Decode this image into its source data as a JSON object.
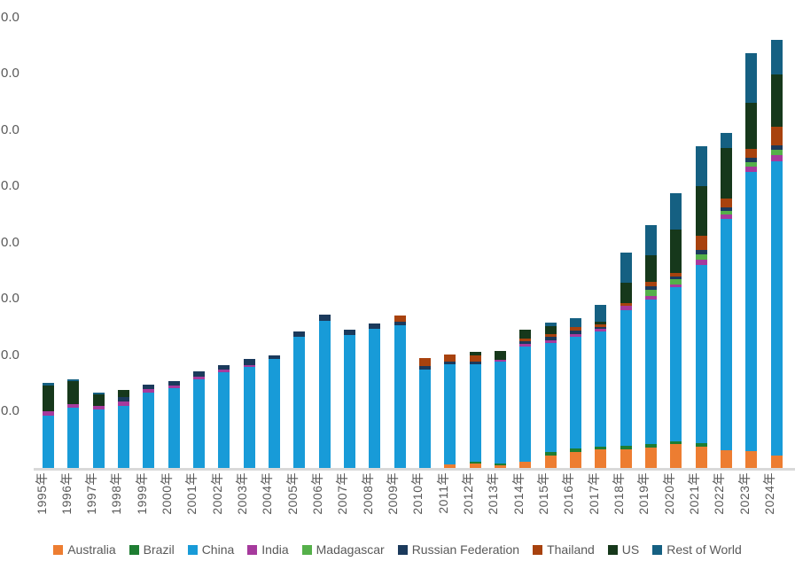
{
  "page": {
    "background": "#FFFFFF"
  },
  "axis": {
    "label_color": "#595959",
    "axis_line_color": "#D9D9D9",
    "y_tick_labels_visible": [
      "0.0",
      "0.0",
      "0.0",
      "0.0",
      "0.0",
      "0.0",
      "0.0",
      "0.0"
    ],
    "y_zero_label": "-",
    "note": "y-axis numeric labels are cropped at the left image edge; only the trailing 0.0 of each label is visible"
  },
  "chart_data": {
    "type": "bar",
    "stacked": true,
    "title": "",
    "xlabel": "",
    "ylabel": "",
    "grid": false,
    "legend_position": "bottom",
    "x_label_rotation_deg": 90,
    "ylim": [
      0,
      400
    ],
    "y_tick_interval": 50,
    "categories": [
      "1995年",
      "1996年",
      "1997年",
      "1998年",
      "1999年",
      "2000年",
      "2001年",
      "2002年",
      "2003年",
      "2004年",
      "2005年",
      "2006年",
      "2007年",
      "2008年",
      "2009年",
      "2010年",
      "2011年",
      "2012年",
      "2013年",
      "2014年",
      "2015年",
      "2016年",
      "2017年",
      "2018年",
      "2019年",
      "2020年",
      "2021年",
      "2022年",
      "2023年",
      "2024年"
    ],
    "series": [
      {
        "name": "Australia",
        "color": "#ED7D31",
        "values": [
          0,
          0,
          0,
          0,
          0,
          0,
          0,
          0,
          0,
          0,
          0,
          0,
          0,
          0,
          0,
          0,
          2.4,
          3.9,
          1.6,
          5.5,
          11.0,
          13.4,
          16.5,
          16.5,
          18.1,
          20.5,
          18.9,
          15.0,
          14.2,
          11.0
        ]
      },
      {
        "name": "Brazil",
        "color": "#1E7D32",
        "values": [
          0,
          0,
          0,
          0,
          0,
          0,
          0,
          0,
          0,
          0,
          0,
          0,
          0,
          0,
          0,
          0,
          0,
          1.6,
          1.6,
          0,
          2.4,
          3.9,
          2.4,
          3.1,
          2.4,
          2.4,
          2.4,
          0,
          0,
          0
        ]
      },
      {
        "name": "China",
        "color": "#189BD8",
        "values": [
          45.7,
          53.5,
          51.2,
          55.1,
          66.9,
          70.1,
          78.0,
          85.0,
          89.0,
          96.1,
          116.5,
          130.7,
          118.1,
          123.6,
          126.0,
          87.4,
          89.0,
          86.6,
          90.6,
          101.6,
          97.6,
          99.2,
          101.6,
          120.5,
          129.1,
          137.0,
          158.3,
          205.5,
          248.8,
          261.4
        ]
      },
      {
        "name": "India",
        "color": "#A63A9D",
        "values": [
          4.7,
          3.1,
          3.9,
          3.9,
          3.1,
          3.1,
          3.1,
          2.4,
          1.6,
          0,
          0,
          0,
          0,
          0,
          0,
          0,
          0,
          0,
          1.6,
          2.4,
          2.4,
          2.4,
          2.4,
          3.9,
          3.1,
          2.4,
          4.7,
          4.7,
          4.7,
          5.5
        ]
      },
      {
        "name": "Madagascar",
        "color": "#55B04A",
        "values": [
          0,
          0,
          0,
          0,
          0,
          0,
          0,
          0,
          0,
          0,
          0,
          0,
          0,
          0,
          0,
          0,
          0,
          0,
          0,
          0,
          0,
          0,
          0,
          0,
          5.5,
          4.7,
          4.7,
          3.1,
          3.9,
          4.7
        ]
      },
      {
        "name": "Russian Federation",
        "color": "#1B3A5C",
        "values": [
          0,
          0,
          0,
          3.9,
          3.9,
          3.9,
          4.7,
          3.9,
          5.5,
          3.9,
          4.7,
          5.5,
          4.7,
          4.7,
          3.9,
          3.1,
          2.4,
          2.4,
          0,
          2.4,
          3.1,
          3.1,
          1.6,
          0,
          3.1,
          3.1,
          4.7,
          3.1,
          3.9,
          3.9
        ]
      },
      {
        "name": "Thailand",
        "color": "#A8420E",
        "values": [
          0,
          0,
          0,
          0,
          0,
          0,
          0,
          0,
          0,
          0,
          0,
          0,
          0,
          0,
          5.5,
          7.1,
          6.3,
          5.5,
          0,
          2.4,
          2.4,
          3.1,
          2.4,
          2.4,
          3.9,
          3.1,
          12.6,
          7.9,
          7.9,
          16.5
        ]
      },
      {
        "name": "US",
        "color": "#16381B",
        "values": [
          22.8,
          20.5,
          10.2,
          6.3,
          0,
          0,
          0,
          0,
          0,
          0,
          0,
          0,
          0,
          0,
          0,
          0,
          0,
          3.1,
          7.9,
          7.9,
          7.1,
          0,
          2.4,
          18.1,
          23.6,
          38.6,
          44.1,
          44.9,
          40.9,
          46.5
        ]
      },
      {
        "name": "Rest of World",
        "color": "#156082",
        "values": [
          2.4,
          1.6,
          1.6,
          0,
          0,
          0,
          0,
          0,
          0,
          0,
          0,
          0,
          0,
          0,
          0,
          0,
          0,
          0,
          0,
          0,
          2.4,
          7.9,
          15.0,
          26.8,
          26.8,
          32.3,
          35.4,
          13.4,
          44.1,
          30.7
        ]
      }
    ]
  }
}
